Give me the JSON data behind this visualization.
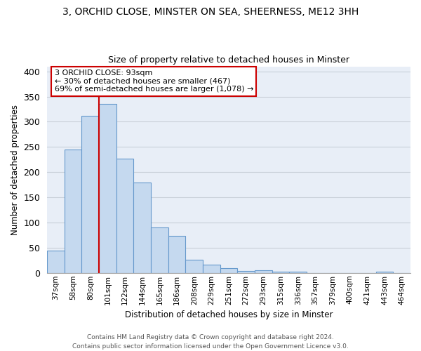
{
  "title1": "3, ORCHID CLOSE, MINSTER ON SEA, SHEERNESS, ME12 3HH",
  "title2": "Size of property relative to detached houses in Minster",
  "xlabel": "Distribution of detached houses by size in Minster",
  "ylabel": "Number of detached properties",
  "categories": [
    "37sqm",
    "58sqm",
    "80sqm",
    "101sqm",
    "122sqm",
    "144sqm",
    "165sqm",
    "186sqm",
    "208sqm",
    "229sqm",
    "251sqm",
    "272sqm",
    "293sqm",
    "315sqm",
    "336sqm",
    "357sqm",
    "379sqm",
    "400sqm",
    "421sqm",
    "443sqm",
    "464sqm"
  ],
  "values": [
    44,
    245,
    312,
    335,
    227,
    180,
    90,
    73,
    26,
    16,
    9,
    4,
    5,
    3,
    3,
    0,
    0,
    0,
    0,
    3,
    0
  ],
  "bar_color": "#c5d9ef",
  "bar_edge_color": "#6699cc",
  "vline_x": 2,
  "vline_color": "#cc0000",
  "annotation_text": "3 ORCHID CLOSE: 93sqm\n← 30% of detached houses are smaller (467)\n69% of semi-detached houses are larger (1,078) →",
  "annotation_box_color": "#ffffff",
  "annotation_box_edge": "#cc0000",
  "footnote": "Contains HM Land Registry data © Crown copyright and database right 2024.\nContains public sector information licensed under the Open Government Licence v3.0.",
  "ylim": [
    0,
    410
  ],
  "figure_bg": "#ffffff",
  "axes_bg": "#e8eef7",
  "grid_color": "#c8cfd8"
}
